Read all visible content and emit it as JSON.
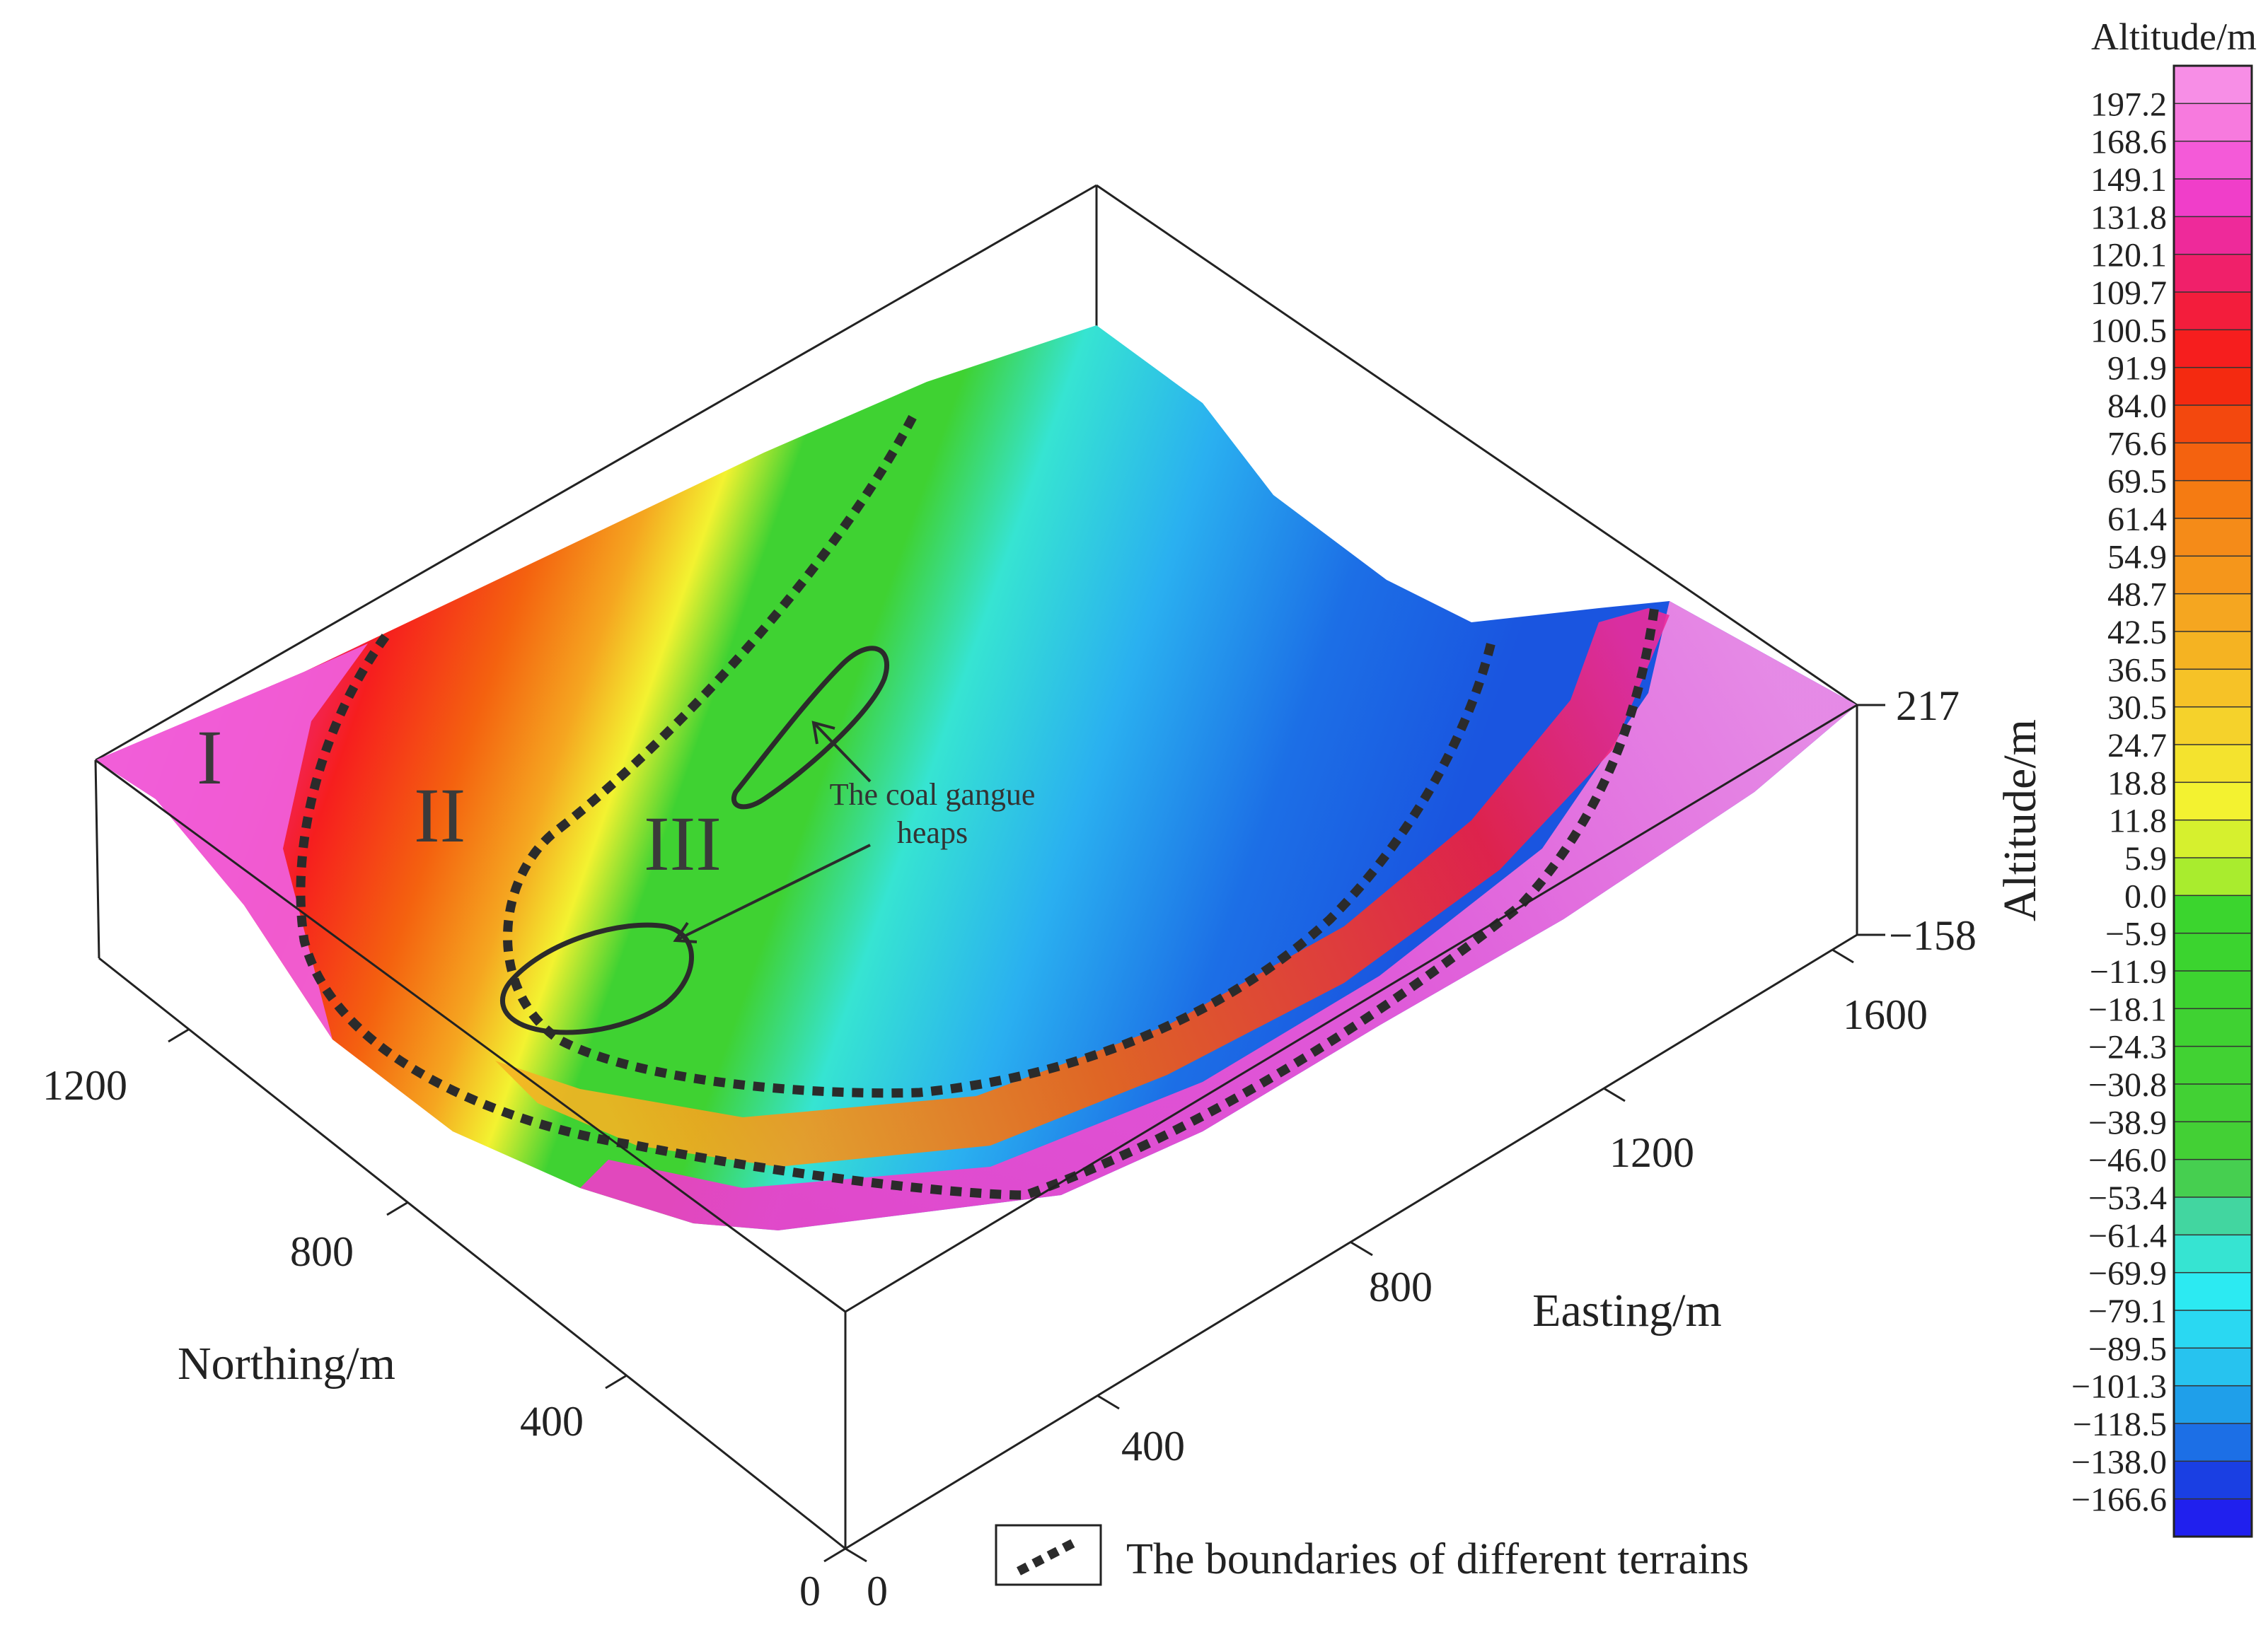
{
  "axes": {
    "northing": {
      "title": "Northing/m",
      "ticks": [
        "0",
        "400",
        "800",
        "1200"
      ]
    },
    "easting": {
      "title": "Easting/m",
      "ticks": [
        "0",
        "400",
        "800",
        "1200",
        "1600"
      ]
    },
    "altitude": {
      "title": "Altitude/m",
      "ticks": [
        "217",
        "−158"
      ]
    }
  },
  "regions": [
    "I",
    "II",
    "III"
  ],
  "annotation": {
    "line1": "The coal gangue",
    "line2": "heaps"
  },
  "legend": {
    "label": "The boundaries of different terrains"
  },
  "colorbar": {
    "title": "Altitude/m",
    "labels": [
      "197.2",
      "168.6",
      "149.1",
      "131.8",
      "120.1",
      "109.7",
      "100.5",
      "91.9",
      "84.0",
      "76.6",
      "69.5",
      "61.4",
      "54.9",
      "48.7",
      "42.5",
      "36.5",
      "30.5",
      "24.7",
      "18.8",
      "11.8",
      "5.9",
      "0.0",
      "−5.9",
      "−11.9",
      "−18.1",
      "−24.3",
      "−30.8",
      "−38.9",
      "−46.0",
      "−53.4",
      "−61.4",
      "−69.9",
      "−79.1",
      "−89.5",
      "−101.3",
      "−118.5",
      "−138.0",
      "−166.6"
    ],
    "colors": [
      "#f78ee6",
      "#f77ade",
      "#f45ad8",
      "#f03ec9",
      "#ee2a9a",
      "#f0206a",
      "#f31d3c",
      "#f61e1e",
      "#f42a10",
      "#f3480e",
      "#f4620f",
      "#f57b12",
      "#f58b18",
      "#f5961b",
      "#f5a620",
      "#f5b322",
      "#f6c227",
      "#f5d22b",
      "#f4e32e",
      "#f3f230",
      "#d6f02e",
      "#a9ec2e",
      "#3bd52e",
      "#3bd42f",
      "#3dd330",
      "#3fd232",
      "#41d233",
      "#42d134",
      "#43d035",
      "#46cf50",
      "#42d6a0",
      "#36e4d2",
      "#2ceaf2",
      "#2ad8f2",
      "#27c3ef",
      "#1f9fea",
      "#1c6fe6",
      "#1a3fe3",
      "#2020ee"
    ]
  }
}
